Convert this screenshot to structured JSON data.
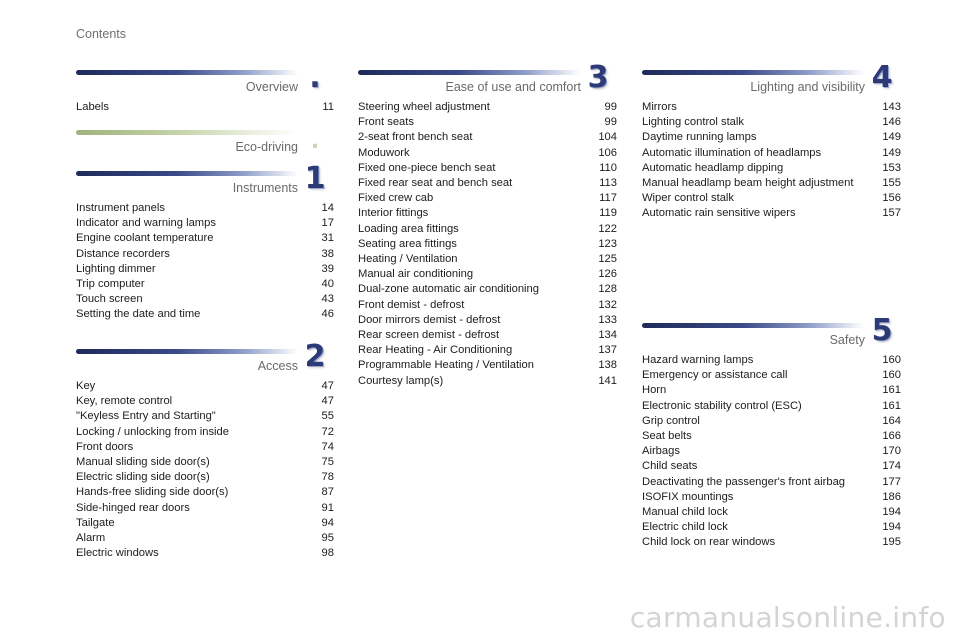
{
  "page_title": "Contents",
  "watermark": "carmanualsonline.info",
  "sections": {
    "overview": {
      "title": "Overview",
      "badge": ".",
      "entries": [
        {
          "label": "Labels",
          "page": "11"
        }
      ]
    },
    "eco": {
      "title": "Eco-driving",
      "badge": "."
    },
    "instruments": {
      "title": "Instruments",
      "badge": "1",
      "entries": [
        {
          "label": "Instrument panels",
          "page": "14"
        },
        {
          "label": "Indicator and warning lamps",
          "page": "17"
        },
        {
          "label": "Engine coolant temperature",
          "page": "31"
        },
        {
          "label": "Distance recorders",
          "page": "38"
        },
        {
          "label": "Lighting dimmer",
          "page": "39"
        },
        {
          "label": "Trip computer",
          "page": "40"
        },
        {
          "label": "Touch screen",
          "page": "43"
        },
        {
          "label": "Setting the date and time",
          "page": "46"
        }
      ]
    },
    "access": {
      "title": "Access",
      "badge": "2",
      "entries": [
        {
          "label": "Key",
          "page": "47"
        },
        {
          "label": "Key, remote control",
          "page": "47"
        },
        {
          "label": "\"Keyless Entry and Starting\"",
          "page": "55"
        },
        {
          "label": "Locking / unlocking from inside",
          "page": "72"
        },
        {
          "label": "Front doors",
          "page": "74"
        },
        {
          "label": "Manual sliding side door(s)",
          "page": "75"
        },
        {
          "label": "Electric sliding side door(s)",
          "page": "78"
        },
        {
          "label": "Hands-free sliding side door(s)",
          "page": "87"
        },
        {
          "label": "Side-hinged rear doors",
          "page": "91"
        },
        {
          "label": "Tailgate",
          "page": "94"
        },
        {
          "label": "Alarm",
          "page": "95"
        },
        {
          "label": "Electric windows",
          "page": "98"
        }
      ]
    },
    "ease": {
      "title": "Ease of use and comfort",
      "badge": "3",
      "entries": [
        {
          "label": "Steering wheel adjustment",
          "page": "99"
        },
        {
          "label": "Front seats",
          "page": "99"
        },
        {
          "label": "2-seat front bench seat",
          "page": "104"
        },
        {
          "label": "Moduwork",
          "page": "106"
        },
        {
          "label": "Fixed one-piece bench seat",
          "page": "110"
        },
        {
          "label": "Fixed rear seat and bench seat",
          "page": "113"
        },
        {
          "label": "Fixed crew cab",
          "page": "117"
        },
        {
          "label": "Interior fittings",
          "page": "119"
        },
        {
          "label": "Loading area fittings",
          "page": "122"
        },
        {
          "label": "Seating area fittings",
          "page": "123"
        },
        {
          "label": "Heating / Ventilation",
          "page": "125"
        },
        {
          "label": "Manual air conditioning",
          "page": "126"
        },
        {
          "label": "Dual-zone automatic air conditioning",
          "page": "128"
        },
        {
          "label": "Front demist - defrost",
          "page": "132"
        },
        {
          "label": "Door mirrors demist - defrost",
          "page": "133"
        },
        {
          "label": "Rear screen demist - defrost",
          "page": "134"
        },
        {
          "label": "Rear Heating - Air Conditioning",
          "page": "137"
        },
        {
          "label": "Programmable Heating / Ventilation",
          "page": "138"
        },
        {
          "label": "Courtesy lamp(s)",
          "page": "141"
        }
      ]
    },
    "lighting": {
      "title": "Lighting and visibility",
      "badge": "4",
      "entries": [
        {
          "label": "Mirrors",
          "page": "143"
        },
        {
          "label": "Lighting control stalk",
          "page": "146"
        },
        {
          "label": "Daytime running lamps",
          "page": "149"
        },
        {
          "label": "Automatic illumination of headlamps",
          "page": "149"
        },
        {
          "label": "Automatic headlamp dipping",
          "page": "153"
        },
        {
          "label": "Manual headlamp beam height adjustment",
          "page": "155"
        },
        {
          "label": "Wiper control stalk",
          "page": "156"
        },
        {
          "label": "Automatic rain sensitive wipers",
          "page": "157"
        }
      ]
    },
    "safety": {
      "title": "Safety",
      "badge": "5",
      "entries": [
        {
          "label": "Hazard warning lamps",
          "page": "160"
        },
        {
          "label": "Emergency or assistance call",
          "page": "160"
        },
        {
          "label": "Horn",
          "page": "161"
        },
        {
          "label": "Electronic stability control (ESC)",
          "page": "161"
        },
        {
          "label": "Grip control",
          "page": "164"
        },
        {
          "label": "Seat belts",
          "page": "166"
        },
        {
          "label": "Airbags",
          "page": "170"
        },
        {
          "label": "Child seats",
          "page": "174"
        },
        {
          "label": "Deactivating the passenger's front airbag",
          "page": "177"
        },
        {
          "label": "ISOFIX mountings",
          "page": "186"
        },
        {
          "label": "Manual child lock",
          "page": "194"
        },
        {
          "label": "Electric child lock",
          "page": "194"
        },
        {
          "label": "Child lock on rear windows",
          "page": "195"
        }
      ]
    }
  }
}
